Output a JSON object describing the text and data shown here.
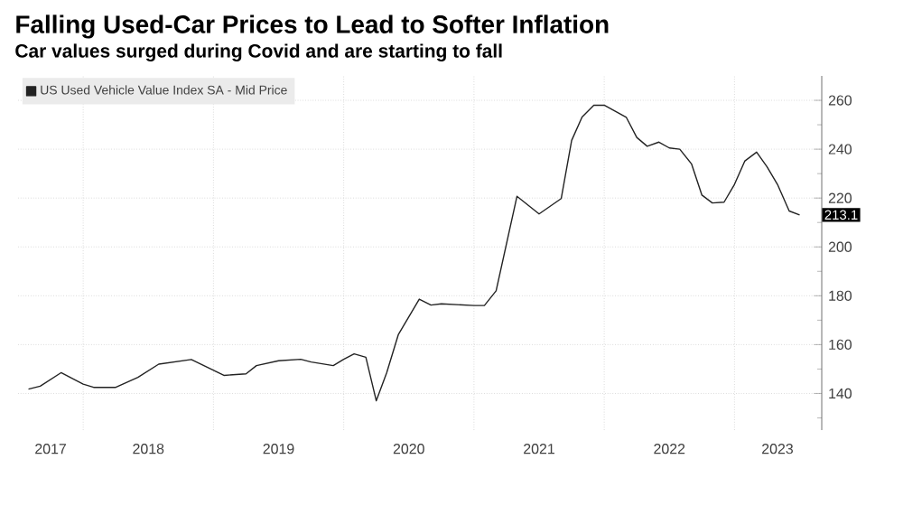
{
  "chart_data": {
    "type": "line",
    "title": "Falling Used-Car Prices to Lead to Softer Inflation",
    "subtitle": "Car values surged during Covid and are starting to fall",
    "x": [
      "2017-08",
      "2017-09",
      "2017-11",
      "2018-01",
      "2018-02",
      "2018-04",
      "2018-06",
      "2018-08",
      "2018-11",
      "2019-02",
      "2019-04",
      "2019-05",
      "2019-07",
      "2019-09",
      "2019-10",
      "2019-12",
      "2020-01",
      "2020-02",
      "2020-03",
      "2020-04",
      "2020-05",
      "2020-06",
      "2020-08",
      "2020-09",
      "2020-10",
      "2021-01",
      "2021-02",
      "2021-03",
      "2021-05",
      "2021-07",
      "2021-09",
      "2021-10",
      "2021-11",
      "2021-12",
      "2022-01",
      "2022-03",
      "2022-04",
      "2022-05",
      "2022-06",
      "2022-07",
      "2022-08",
      "2022-09",
      "2022-10",
      "2022-11",
      "2022-12",
      "2023-01",
      "2023-02",
      "2023-03",
      "2023-04",
      "2023-05",
      "2023-06",
      "2023-07"
    ],
    "series": [
      {
        "name": "US Used Vehicle Value Index SA - Mid Price",
        "color": "#222222",
        "values": [
          141.8,
          143,
          148.5,
          143.8,
          142.5,
          142.5,
          146.6,
          152,
          153.9,
          147.4,
          148,
          151.4,
          153.4,
          154,
          152.9,
          151.4,
          154,
          156.2,
          154.8,
          137,
          148.5,
          164.2,
          178.6,
          176.2,
          176.7,
          176,
          176,
          182,
          220.7,
          213.5,
          219.8,
          243.6,
          253.2,
          258,
          258,
          253,
          244.8,
          241.2,
          242.9,
          240.5,
          240,
          234,
          221.2,
          218,
          218.3,
          225.6,
          235.2,
          238.8,
          232.8,
          225.6,
          214.7,
          213.1
        ],
        "value_labels": [
          null,
          null,
          null,
          null,
          null,
          null,
          null,
          null,
          null,
          null,
          null,
          null,
          null,
          null,
          null,
          null,
          null,
          null,
          null,
          null,
          null,
          null,
          null,
          null,
          null,
          null,
          null,
          null,
          null,
          null,
          null,
          null,
          null,
          null,
          null,
          null,
          null,
          null,
          null,
          null,
          null,
          null,
          null,
          null,
          null,
          null,
          null,
          null,
          null,
          null,
          null,
          "213.1"
        ]
      }
    ],
    "xlim": [
      "2017-07",
      "2023-09"
    ],
    "xticks": [
      {
        "value": "2017-10",
        "label": "2017"
      },
      {
        "value": "2018-01",
        "label": null
      },
      {
        "value": "2018-07",
        "label": "2018"
      },
      {
        "value": "2019-01",
        "label": null
      },
      {
        "value": "2019-07",
        "label": "2019"
      },
      {
        "value": "2020-01",
        "label": null
      },
      {
        "value": "2020-07",
        "label": "2020"
      },
      {
        "value": "2021-01",
        "label": null
      },
      {
        "value": "2021-07",
        "label": "2021"
      },
      {
        "value": "2022-01",
        "label": null
      },
      {
        "value": "2022-07",
        "label": "2022"
      },
      {
        "value": "2023-01",
        "label": null
      },
      {
        "value": "2023-05",
        "label": "2023"
      }
    ],
    "ylim": [
      125,
      270
    ],
    "yticks": [
      {
        "value": 130,
        "label": null
      },
      140,
      {
        "value": 150,
        "label": null
      },
      160,
      {
        "value": 170,
        "label": null
      },
      180,
      {
        "value": 190,
        "label": null
      },
      200,
      {
        "value": 210,
        "label": null
      },
      220,
      {
        "value": 230,
        "label": null
      },
      240,
      {
        "value": 250,
        "label": null
      },
      260
    ],
    "grid": true,
    "legend": "top left",
    "marker": "none",
    "line_style": "solid"
  }
}
